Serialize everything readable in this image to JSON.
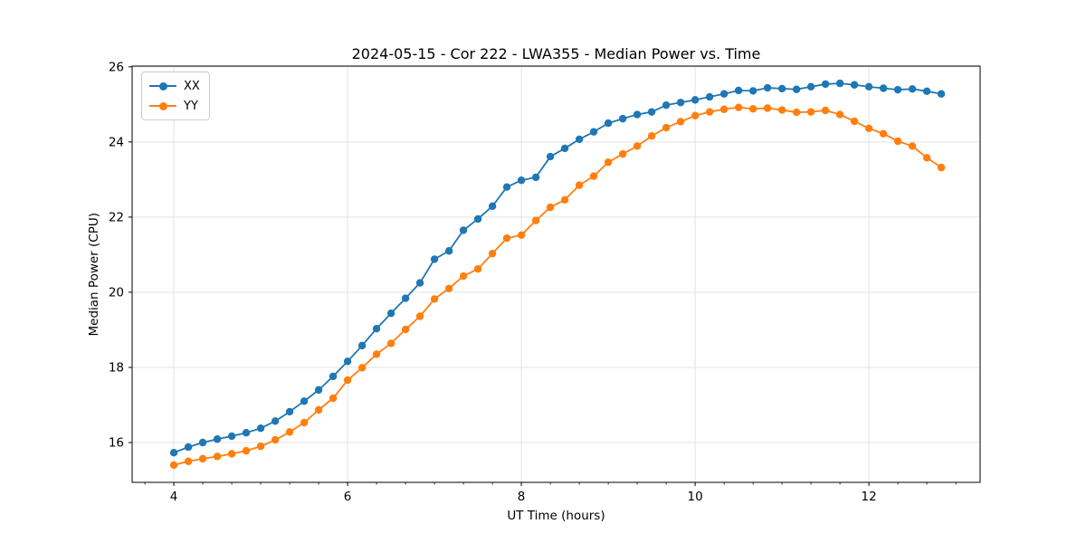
{
  "figure": {
    "title": "2024-05-15 - Cor 222 - LWA355 - Median Power vs. Time",
    "xlabel": "UT Time (hours)",
    "ylabel": "Median Power (CPU)"
  },
  "legend": {
    "entries": [
      {
        "label": "XX",
        "color": "#1f77b4"
      },
      {
        "label": "YY",
        "color": "#ff7f0e"
      }
    ]
  },
  "chart_data": {
    "type": "line",
    "title": "2024-05-15 - Cor 222 - LWA355 - Median Power vs. Time",
    "xlabel": "UT Time (hours)",
    "ylabel": "Median Power (CPU)",
    "legend_position": "upper left",
    "grid": true,
    "grid_color": "#e3e3e3",
    "axis_color": "#000000",
    "xlim": [
      3.52,
      13.28
    ],
    "ylim": [
      14.94,
      26.02
    ],
    "xticks": [
      4,
      6,
      8,
      10,
      12
    ],
    "yticks": [
      16,
      18,
      20,
      22,
      24,
      26
    ],
    "minor_xtick_interval": 0.3333,
    "x": [
      4.0,
      4.167,
      4.333,
      4.5,
      4.667,
      4.833,
      5.0,
      5.167,
      5.333,
      5.5,
      5.667,
      5.833,
      6.0,
      6.167,
      6.333,
      6.5,
      6.667,
      6.833,
      7.0,
      7.167,
      7.333,
      7.5,
      7.667,
      7.833,
      8.0,
      8.167,
      8.333,
      8.5,
      8.667,
      8.833,
      9.0,
      9.167,
      9.333,
      9.5,
      9.667,
      9.833,
      10.0,
      10.167,
      10.333,
      10.5,
      10.667,
      10.833,
      11.0,
      11.167,
      11.333,
      11.5,
      11.667,
      11.833,
      12.0,
      12.167,
      12.333,
      12.5,
      12.667,
      12.833
    ],
    "series": [
      {
        "name": "XX",
        "color": "#1f77b4",
        "marker": "circle",
        "values": [
          15.73,
          15.88,
          16.0,
          16.09,
          16.17,
          16.26,
          16.38,
          16.57,
          16.82,
          17.1,
          17.4,
          17.76,
          18.16,
          18.58,
          19.03,
          19.44,
          19.84,
          20.25,
          20.88,
          21.1,
          21.65,
          21.95,
          22.29,
          22.8,
          22.98,
          23.06,
          23.61,
          23.83,
          24.07,
          24.27,
          24.5,
          24.62,
          24.73,
          24.8,
          24.98,
          25.05,
          25.12,
          25.2,
          25.28,
          25.37,
          25.36,
          25.44,
          25.42,
          25.4,
          25.47,
          25.54,
          25.56,
          25.52,
          25.47,
          25.43,
          25.39,
          25.41,
          25.35,
          25.28
        ]
      },
      {
        "name": "YY",
        "color": "#ff7f0e",
        "marker": "circle",
        "values": [
          15.4,
          15.5,
          15.57,
          15.63,
          15.7,
          15.78,
          15.9,
          16.07,
          16.28,
          16.53,
          16.87,
          17.18,
          17.66,
          17.99,
          18.35,
          18.64,
          19.01,
          19.36,
          19.82,
          20.1,
          20.43,
          20.62,
          21.03,
          21.44,
          21.52,
          21.91,
          22.26,
          22.46,
          22.85,
          23.09,
          23.46,
          23.68,
          23.89,
          24.16,
          24.38,
          24.54,
          24.7,
          24.8,
          24.87,
          24.92,
          24.88,
          24.9,
          24.85,
          24.79,
          24.8,
          24.84,
          24.73,
          24.55,
          24.36,
          24.22,
          24.02,
          23.89,
          23.58,
          23.32
        ]
      }
    ]
  }
}
